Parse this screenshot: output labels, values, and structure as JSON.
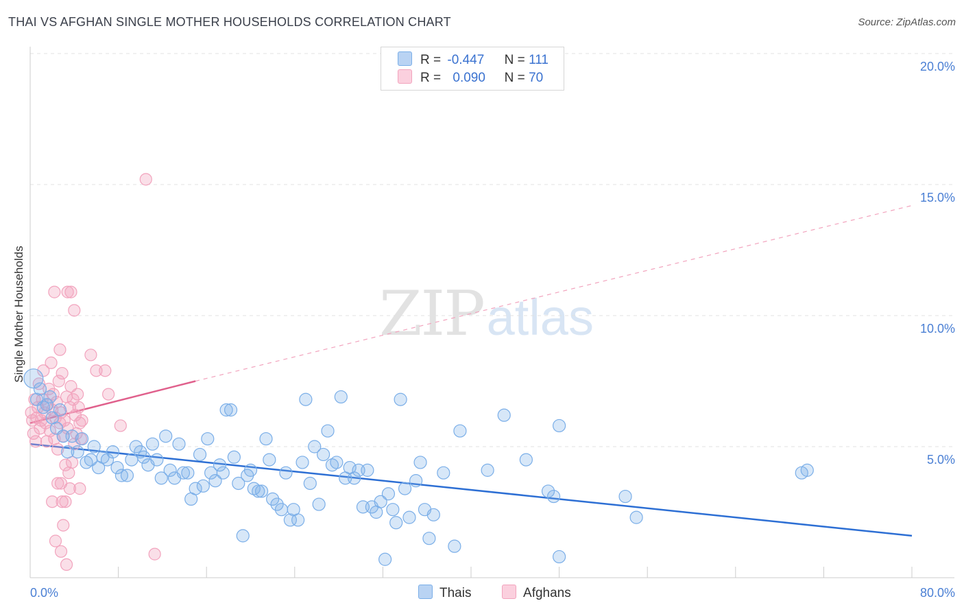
{
  "title": "THAI VS AFGHAN SINGLE MOTHER HOUSEHOLDS CORRELATION CHART",
  "source": "Source: ZipAtlas.com",
  "watermark": {
    "zip": "ZIP",
    "atlas": "atlas"
  },
  "legend": {
    "thais": {
      "r_label": "R =",
      "r_value": "-0.447",
      "n_label": "N =",
      "n_value": "111"
    },
    "afghans": {
      "r_label": "R =",
      "r_value": "0.090",
      "n_label": "N =",
      "n_value": "70"
    }
  },
  "bottom_legend": {
    "thais": "Thais",
    "afghans": "Afghans"
  },
  "chart_data": {
    "type": "scatter",
    "title": "THAI VS AFGHAN SINGLE MOTHER HOUSEHOLDS CORRELATION CHART",
    "xlabel": "",
    "ylabel": "Single Mother Households",
    "xlim": [
      0,
      80
    ],
    "ylim": [
      0,
      20
    ],
    "x_tick_labels": [
      "0.0%",
      "80.0%"
    ],
    "y_ticks": [
      5,
      10,
      15,
      20
    ],
    "y_tick_labels": [
      "5.0%",
      "10.0%",
      "15.0%",
      "20.0%"
    ],
    "grid": true,
    "legend_position": "top-center",
    "colors": {
      "thais": "#7aaee8",
      "thais_line": "#2d6fd4",
      "afghans": "#f2a3bd",
      "afghans_line": "#e0608c"
    },
    "series": [
      {
        "name": "Thais",
        "R": -0.447,
        "N": 111,
        "trend": {
          "x": [
            0,
            80
          ],
          "y": [
            5.1,
            1.6
          ]
        },
        "points": [
          [
            0.3,
            7.6
          ],
          [
            0.6,
            6.8
          ],
          [
            0.9,
            7.2
          ],
          [
            1.2,
            6.5
          ],
          [
            1.5,
            6.6
          ],
          [
            1.8,
            6.9
          ],
          [
            2.0,
            6.1
          ],
          [
            2.4,
            5.7
          ],
          [
            2.7,
            6.4
          ],
          [
            3.0,
            5.4
          ],
          [
            3.4,
            4.8
          ],
          [
            3.8,
            5.4
          ],
          [
            4.3,
            4.8
          ],
          [
            4.7,
            5.3
          ],
          [
            5.1,
            4.4
          ],
          [
            5.5,
            4.5
          ],
          [
            5.8,
            5.0
          ],
          [
            6.2,
            4.2
          ],
          [
            6.6,
            4.6
          ],
          [
            7.0,
            4.5
          ],
          [
            7.5,
            4.8
          ],
          [
            7.9,
            4.2
          ],
          [
            8.3,
            3.9
          ],
          [
            8.8,
            3.9
          ],
          [
            9.2,
            4.5
          ],
          [
            9.6,
            5.0
          ],
          [
            10.0,
            4.8
          ],
          [
            10.3,
            4.6
          ],
          [
            10.7,
            4.3
          ],
          [
            11.1,
            5.1
          ],
          [
            11.5,
            4.5
          ],
          [
            11.9,
            3.8
          ],
          [
            12.3,
            5.4
          ],
          [
            12.7,
            4.1
          ],
          [
            13.1,
            3.8
          ],
          [
            13.5,
            5.1
          ],
          [
            13.9,
            4.0
          ],
          [
            14.3,
            4.0
          ],
          [
            14.6,
            3.0
          ],
          [
            15.0,
            3.4
          ],
          [
            15.4,
            4.7
          ],
          [
            15.7,
            3.5
          ],
          [
            16.1,
            5.3
          ],
          [
            16.4,
            4.0
          ],
          [
            16.8,
            3.7
          ],
          [
            17.2,
            4.3
          ],
          [
            17.5,
            4.0
          ],
          [
            17.8,
            6.4
          ],
          [
            18.2,
            6.4
          ],
          [
            18.5,
            4.6
          ],
          [
            18.9,
            3.6
          ],
          [
            19.3,
            1.6
          ],
          [
            19.7,
            3.9
          ],
          [
            20.0,
            4.1
          ],
          [
            20.3,
            3.4
          ],
          [
            20.7,
            3.3
          ],
          [
            21.0,
            3.3
          ],
          [
            21.4,
            5.3
          ],
          [
            21.7,
            4.5
          ],
          [
            22.0,
            3.0
          ],
          [
            22.4,
            2.8
          ],
          [
            22.8,
            2.6
          ],
          [
            23.2,
            4.0
          ],
          [
            23.6,
            2.2
          ],
          [
            23.9,
            2.6
          ],
          [
            24.3,
            2.2
          ],
          [
            24.7,
            4.4
          ],
          [
            25.0,
            6.8
          ],
          [
            25.4,
            3.6
          ],
          [
            25.8,
            5.0
          ],
          [
            26.2,
            2.8
          ],
          [
            26.6,
            4.7
          ],
          [
            27.0,
            5.6
          ],
          [
            27.4,
            4.3
          ],
          [
            27.8,
            4.4
          ],
          [
            28.2,
            6.9
          ],
          [
            28.6,
            3.8
          ],
          [
            29.0,
            4.2
          ],
          [
            29.4,
            3.8
          ],
          [
            29.8,
            4.1
          ],
          [
            30.2,
            2.7
          ],
          [
            30.6,
            4.1
          ],
          [
            31.0,
            2.7
          ],
          [
            31.4,
            2.5
          ],
          [
            31.8,
            2.9
          ],
          [
            32.2,
            0.7
          ],
          [
            32.5,
            3.2
          ],
          [
            32.9,
            2.6
          ],
          [
            33.2,
            2.1
          ],
          [
            33.6,
            6.8
          ],
          [
            34.0,
            3.4
          ],
          [
            34.4,
            2.3
          ],
          [
            35.0,
            3.7
          ],
          [
            35.4,
            4.4
          ],
          [
            35.8,
            2.6
          ],
          [
            36.2,
            1.5
          ],
          [
            36.6,
            2.4
          ],
          [
            37.5,
            4.0
          ],
          [
            38.5,
            1.2
          ],
          [
            39.0,
            5.6
          ],
          [
            41.5,
            4.1
          ],
          [
            43.0,
            6.2
          ],
          [
            45.0,
            4.5
          ],
          [
            47.0,
            3.3
          ],
          [
            47.5,
            3.1
          ],
          [
            48.0,
            5.8
          ],
          [
            48.0,
            0.8
          ],
          [
            54.0,
            3.1
          ],
          [
            55.0,
            2.3
          ],
          [
            70.0,
            4.0
          ],
          [
            70.5,
            4.1
          ]
        ]
      },
      {
        "name": "Afghans",
        "R": 0.09,
        "N": 70,
        "trend": {
          "x": [
            0,
            15
          ],
          "y": [
            5.9,
            7.5
          ]
        },
        "trend_extrapolated": {
          "x": [
            15,
            80
          ],
          "y": [
            7.5,
            14.2
          ]
        },
        "points": [
          [
            0.1,
            6.3
          ],
          [
            0.2,
            6.0
          ],
          [
            0.3,
            5.5
          ],
          [
            0.4,
            6.8
          ],
          [
            0.5,
            5.2
          ],
          [
            0.6,
            6.1
          ],
          [
            0.7,
            6.5
          ],
          [
            0.8,
            7.4
          ],
          [
            0.9,
            5.7
          ],
          [
            1.0,
            6.0
          ],
          [
            1.1,
            6.8
          ],
          [
            1.2,
            7.9
          ],
          [
            1.3,
            6.3
          ],
          [
            1.4,
            5.9
          ],
          [
            1.5,
            5.2
          ],
          [
            1.6,
            6.6
          ],
          [
            1.7,
            7.2
          ],
          [
            1.8,
            5.6
          ],
          [
            1.9,
            8.2
          ],
          [
            2.0,
            6.4
          ],
          [
            2.1,
            7.0
          ],
          [
            2.2,
            5.3
          ],
          [
            2.3,
            6.1
          ],
          [
            2.4,
            6.7
          ],
          [
            2.5,
            4.9
          ],
          [
            2.6,
            7.5
          ],
          [
            2.7,
            5.9
          ],
          [
            2.8,
            6.3
          ],
          [
            2.9,
            7.8
          ],
          [
            3.0,
            5.4
          ],
          [
            3.1,
            6.0
          ],
          [
            3.2,
            4.3
          ],
          [
            3.3,
            6.9
          ],
          [
            3.4,
            5.7
          ],
          [
            3.5,
            4.0
          ],
          [
            3.6,
            6.5
          ],
          [
            3.7,
            7.3
          ],
          [
            3.8,
            4.4
          ],
          [
            3.9,
            6.8
          ],
          [
            4.0,
            5.1
          ],
          [
            4.1,
            6.2
          ],
          [
            4.2,
            5.5
          ],
          [
            4.3,
            7.0
          ],
          [
            4.4,
            6.5
          ],
          [
            4.5,
            5.9
          ],
          [
            4.6,
            5.3
          ],
          [
            4.7,
            6.0
          ],
          [
            2.7,
            8.7
          ],
          [
            2.5,
            3.6
          ],
          [
            2.8,
            3.6
          ],
          [
            3.7,
            10.9
          ],
          [
            2.2,
            10.9
          ],
          [
            3.4,
            10.9
          ],
          [
            4.0,
            10.2
          ],
          [
            3.6,
            3.4
          ],
          [
            4.5,
            3.4
          ],
          [
            2.9,
            2.9
          ],
          [
            3.2,
            2.9
          ],
          [
            2.0,
            2.9
          ],
          [
            3.0,
            2.0
          ],
          [
            2.3,
            1.4
          ],
          [
            2.8,
            1.0
          ],
          [
            3.3,
            0.5
          ],
          [
            5.5,
            8.5
          ],
          [
            6.0,
            7.9
          ],
          [
            6.8,
            7.9
          ],
          [
            7.1,
            7.0
          ],
          [
            8.2,
            5.8
          ],
          [
            10.5,
            15.2
          ],
          [
            11.3,
            0.9
          ]
        ]
      }
    ]
  }
}
